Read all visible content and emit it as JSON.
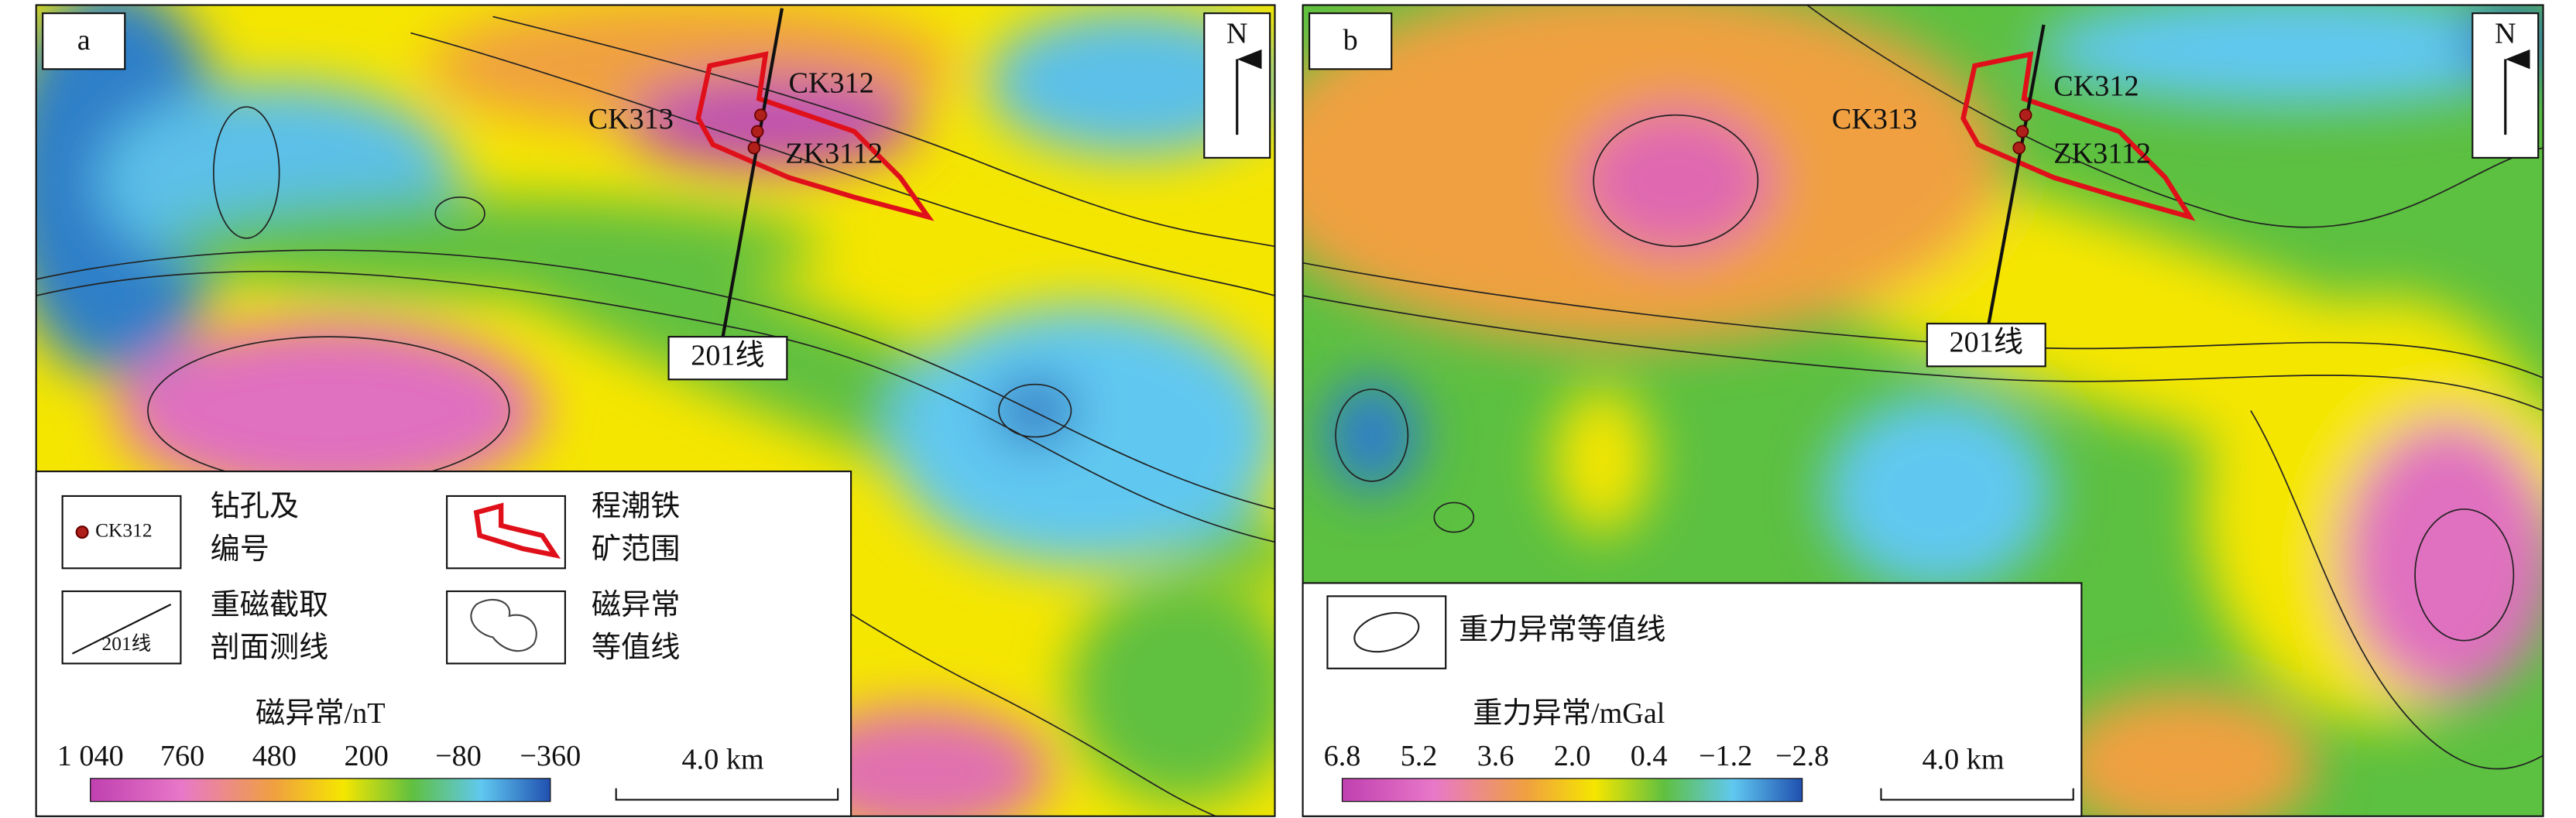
{
  "panels": [
    {
      "label": "a",
      "north": "N",
      "drillholes": {
        "upper": "CK312",
        "left": "CK313",
        "lower": "ZK3112"
      },
      "section_line": "201线",
      "legend": [
        {
          "sample": "CK312",
          "text": [
            "钻孔及",
            "编号"
          ]
        },
        {
          "sample": "201线",
          "text": [
            "重磁截取",
            "剖面测线"
          ]
        },
        {
          "text": [
            "程潮铁",
            "矿范围"
          ]
        },
        {
          "text": [
            "磁异常",
            "等值线"
          ]
        }
      ],
      "colorbar": {
        "title": "磁异常/nT",
        "labels": [
          "1 040",
          "760",
          "480",
          "200",
          "−80",
          "−360"
        ]
      },
      "scale": "4.0 km"
    },
    {
      "label": "b",
      "north": "N",
      "drillholes": {
        "upper": "CK312",
        "left": "CK313",
        "lower": "ZK3112"
      },
      "section_line": "201线",
      "legend": [
        {
          "text": [
            "重力异常等值线"
          ]
        }
      ],
      "colorbar": {
        "title": "重力异常/mGal",
        "labels": [
          "6.8",
          "5.2",
          "3.6",
          "2.0",
          "0.4",
          "−1.2",
          "−2.8"
        ]
      },
      "scale": "4.0 km"
    }
  ]
}
